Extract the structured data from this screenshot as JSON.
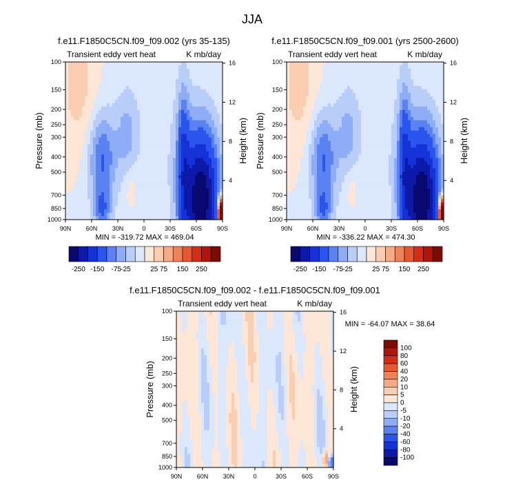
{
  "figure_title": "JJA",
  "colors": {
    "neg": [
      "#08086e",
      "#0d1aa8",
      "#1432d8",
      "#2a55ec",
      "#5a82f2",
      "#8fadf6",
      "#b9cdf9",
      "#dbe7fc"
    ],
    "pos": [
      "#fde6d6",
      "#fbcdb0",
      "#f6ab85",
      "#f08258",
      "#e8572f",
      "#d52e14",
      "#b01508",
      "#7c0b04"
    ],
    "zero_band": "#fbfbfb",
    "frame": "#000000"
  },
  "chart_data": [
    {
      "id": "panel-a",
      "type": "heatmap",
      "title": "f.e11.F1850C5CN.f09_f09.002 (yrs 35-135)",
      "left_string": "Transient eddy vert heat",
      "right_string": "K mb/day",
      "ylabel": "Pressure (mb)",
      "ylabel_right": "Height (km)",
      "x_ticks": [
        "90N",
        "60N",
        "30N",
        "0",
        "30S",
        "60S",
        "90S"
      ],
      "y_ticks": [
        "100",
        "150",
        "200",
        "250",
        "300",
        "400",
        "500",
        "700",
        "850",
        "1000"
      ],
      "y_ticks_right": [
        "16",
        "12",
        "8",
        "4"
      ],
      "min": -319.72,
      "max": 469.04,
      "stats_text": "MIN = -319.72   MAX = 469.04",
      "colorbar_labels": [
        "-250",
        "-150",
        "-75",
        "-25",
        "25",
        "75",
        "150",
        "250"
      ]
    },
    {
      "id": "panel-b",
      "type": "heatmap",
      "title": "f.e11.F1850C5CN.f09_f09.001 (yrs 2500-2600)",
      "left_string": "Transient eddy vert heat",
      "right_string": "K mb/day",
      "ylabel": "Pressure (mb)",
      "ylabel_right": "Height (km)",
      "x_ticks": [
        "90N",
        "60N",
        "30N",
        "0",
        "30S",
        "60S",
        "90S"
      ],
      "y_ticks": [
        "100",
        "150",
        "200",
        "250",
        "300",
        "400",
        "500",
        "700",
        "850",
        "1000"
      ],
      "y_ticks_right": [
        "16",
        "12",
        "8",
        "4"
      ],
      "min": -336.22,
      "max": 474.3,
      "stats_text": "MIN = -336.22   MAX = 474.30",
      "colorbar_labels": [
        "-250",
        "-150",
        "-75",
        "-25",
        "25",
        "75",
        "150",
        "250"
      ]
    },
    {
      "id": "panel-diff",
      "type": "heatmap",
      "title": "f.e11.F1850C5CN.f09_f09.002 - f.e11.F1850C5CN.f09_f09.001",
      "left_string": "Transient eddy vert heat",
      "right_string": "K mb/day",
      "ylabel": "Pressure (mb)",
      "ylabel_right": "Height (km)",
      "x_ticks": [
        "90N",
        "60N",
        "30N",
        "0",
        "30S",
        "60S",
        "90S"
      ],
      "y_ticks": [
        "100",
        "150",
        "200",
        "250",
        "300",
        "400",
        "500",
        "700",
        "850",
        "1000"
      ],
      "y_ticks_right": [
        "16",
        "12",
        "8",
        "4"
      ],
      "min": -64.07,
      "max": 38.64,
      "stats_text": "MIN = -64.07   MAX =  38.64",
      "colorbar_labels": [
        "100",
        "80",
        "60",
        "40",
        "20",
        "10",
        "5",
        "0",
        "-5",
        "-10",
        "-20",
        "-40",
        "-60",
        "-80",
        "-100"
      ]
    }
  ]
}
